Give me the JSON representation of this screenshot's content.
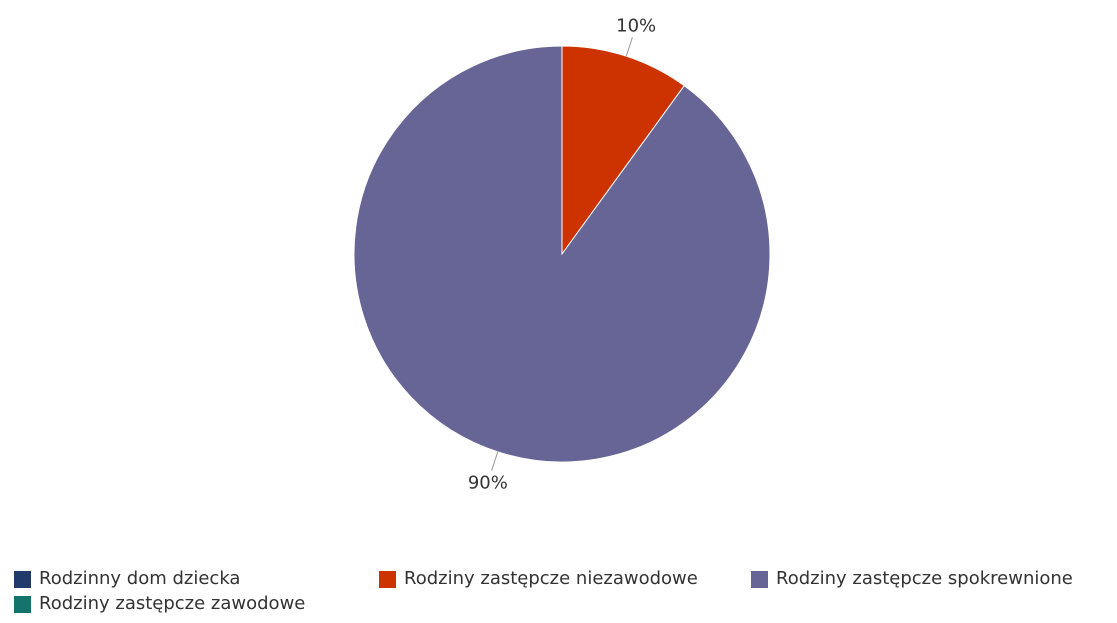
{
  "chart_data": {
    "type": "pie",
    "slices": [
      {
        "label": "Rodzinny dom dziecka",
        "value": 0,
        "color": "#1f3a6b"
      },
      {
        "label": "Rodziny zastępcze zawodowe",
        "value": 0,
        "color": "#13746b"
      },
      {
        "label": "Rodziny zastępcze niezawodowe",
        "value": 10,
        "color": "#cc3300",
        "display": "10%"
      },
      {
        "label": "Rodziny zastępcze spokrewnione",
        "value": 90,
        "color": "#676596",
        "display": "90%"
      }
    ],
    "legend_position": "bottom"
  },
  "legend": {
    "items": [
      {
        "label": "Rodzinny dom dziecka",
        "color": "#1f3a6b"
      },
      {
        "label": "Rodziny zastępcze niezawodowe",
        "color": "#cc3300"
      },
      {
        "label": "Rodziny zastępcze spokrewnione",
        "color": "#676596"
      },
      {
        "label": "Rodziny zastępcze zawodowe",
        "color": "#13746b"
      }
    ]
  }
}
